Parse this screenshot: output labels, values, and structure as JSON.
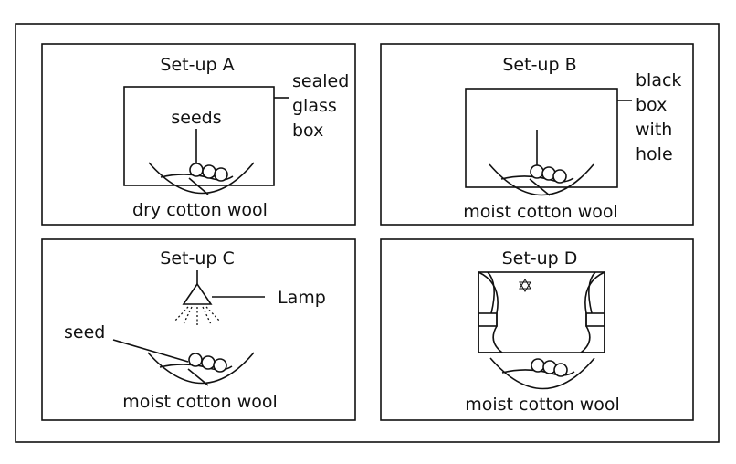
{
  "figure": {
    "panels": [
      {
        "id": "A",
        "title": "Set-up A",
        "labels": {
          "seeds": "seeds",
          "box_line1": "sealed",
          "box_line2": "glass",
          "box_line3": "box",
          "base": "dry cotton wool"
        }
      },
      {
        "id": "B",
        "title": "Set-up B",
        "labels": {
          "box_line1": "black",
          "box_line2": "box",
          "box_line3": "with",
          "box_line4": "hole",
          "base": "moist cotton wool"
        }
      },
      {
        "id": "C",
        "title": "Set-up C",
        "labels": {
          "lamp": "Lamp",
          "seed": "seed",
          "base": "moist cotton wool"
        }
      },
      {
        "id": "D",
        "title": "Set-up D",
        "labels": {
          "base": "moist cotton wool"
        },
        "icons": [
          "star-of-david-icon",
          "curtain-left",
          "curtain-right"
        ]
      }
    ]
  }
}
